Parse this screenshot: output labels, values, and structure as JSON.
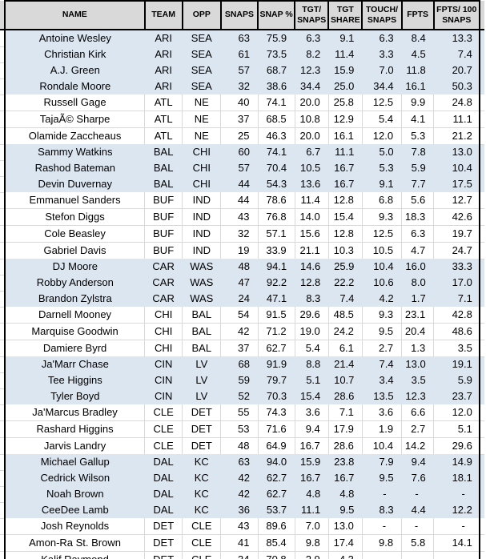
{
  "colors": {
    "header_bg": "#d9d9d9",
    "row_shaded": "#dce6f1",
    "row_plain": "#ffffff",
    "gridline": "#d9d9d9",
    "table_border": "#000000",
    "text": "#000000"
  },
  "table": {
    "columns": [
      {
        "id": "name",
        "label": "NAME"
      },
      {
        "id": "team",
        "label": "TEAM"
      },
      {
        "id": "opp",
        "label": "OPP"
      },
      {
        "id": "snaps",
        "label": "SNAPS"
      },
      {
        "id": "snap-pct",
        "label": "SNAP %"
      },
      {
        "id": "tgt-snaps",
        "label": "TGT/\nSNAPS"
      },
      {
        "id": "tgt-share",
        "label": "TGT\nSHARE"
      },
      {
        "id": "touch-snaps",
        "label": "TOUCH/\nSNAPS"
      },
      {
        "id": "fpts",
        "label": "FPTS"
      },
      {
        "id": "fpts-100",
        "label": "FPTS/ 100\nSNAPS"
      }
    ],
    "shaded_teams": [
      "ARI",
      "BAL",
      "CAR",
      "CIN",
      "DAL"
    ],
    "rows": [
      [
        "Antoine Wesley",
        "ARI",
        "SEA",
        "63",
        "75.9",
        "6.3",
        "9.1",
        "6.3",
        "8.4",
        "13.3"
      ],
      [
        "Christian Kirk",
        "ARI",
        "SEA",
        "61",
        "73.5",
        "8.2",
        "11.4",
        "3.3",
        "4.5",
        "7.4"
      ],
      [
        "A.J. Green",
        "ARI",
        "SEA",
        "57",
        "68.7",
        "12.3",
        "15.9",
        "7.0",
        "11.8",
        "20.7"
      ],
      [
        "Rondale Moore",
        "ARI",
        "SEA",
        "32",
        "38.6",
        "34.4",
        "25.0",
        "34.4",
        "16.1",
        "50.3"
      ],
      [
        "Russell Gage",
        "ATL",
        "NE",
        "40",
        "74.1",
        "20.0",
        "25.8",
        "12.5",
        "9.9",
        "24.8"
      ],
      [
        "TajaÃ© Sharpe",
        "ATL",
        "NE",
        "37",
        "68.5",
        "10.8",
        "12.9",
        "5.4",
        "4.1",
        "11.1"
      ],
      [
        "Olamide Zaccheaus",
        "ATL",
        "NE",
        "25",
        "46.3",
        "20.0",
        "16.1",
        "12.0",
        "5.3",
        "21.2"
      ],
      [
        "Sammy Watkins",
        "BAL",
        "CHI",
        "60",
        "74.1",
        "6.7",
        "11.1",
        "5.0",
        "7.8",
        "13.0"
      ],
      [
        "Rashod Bateman",
        "BAL",
        "CHI",
        "57",
        "70.4",
        "10.5",
        "16.7",
        "5.3",
        "5.9",
        "10.4"
      ],
      [
        "Devin Duvernay",
        "BAL",
        "CHI",
        "44",
        "54.3",
        "13.6",
        "16.7",
        "9.1",
        "7.7",
        "17.5"
      ],
      [
        "Emmanuel Sanders",
        "BUF",
        "IND",
        "44",
        "78.6",
        "11.4",
        "12.8",
        "6.8",
        "5.6",
        "12.7"
      ],
      [
        "Stefon Diggs",
        "BUF",
        "IND",
        "43",
        "76.8",
        "14.0",
        "15.4",
        "9.3",
        "18.3",
        "42.6"
      ],
      [
        "Cole Beasley",
        "BUF",
        "IND",
        "32",
        "57.1",
        "15.6",
        "12.8",
        "12.5",
        "6.3",
        "19.7"
      ],
      [
        "Gabriel Davis",
        "BUF",
        "IND",
        "19",
        "33.9",
        "21.1",
        "10.3",
        "10.5",
        "4.7",
        "24.7"
      ],
      [
        "DJ Moore",
        "CAR",
        "WAS",
        "48",
        "94.1",
        "14.6",
        "25.9",
        "10.4",
        "16.0",
        "33.3"
      ],
      [
        "Robby Anderson",
        "CAR",
        "WAS",
        "47",
        "92.2",
        "12.8",
        "22.2",
        "10.6",
        "8.0",
        "17.0"
      ],
      [
        "Brandon Zylstra",
        "CAR",
        "WAS",
        "24",
        "47.1",
        "8.3",
        "7.4",
        "4.2",
        "1.7",
        "7.1"
      ],
      [
        "Darnell Mooney",
        "CHI",
        "BAL",
        "54",
        "91.5",
        "29.6",
        "48.5",
        "9.3",
        "23.1",
        "42.8"
      ],
      [
        "Marquise Goodwin",
        "CHI",
        "BAL",
        "42",
        "71.2",
        "19.0",
        "24.2",
        "9.5",
        "20.4",
        "48.6"
      ],
      [
        "Damiere Byrd",
        "CHI",
        "BAL",
        "37",
        "62.7",
        "5.4",
        "6.1",
        "2.7",
        "1.3",
        "3.5"
      ],
      [
        "Ja'Marr Chase",
        "CIN",
        "LV",
        "68",
        "91.9",
        "8.8",
        "21.4",
        "7.4",
        "13.0",
        "19.1"
      ],
      [
        "Tee Higgins",
        "CIN",
        "LV",
        "59",
        "79.7",
        "5.1",
        "10.7",
        "3.4",
        "3.5",
        "5.9"
      ],
      [
        "Tyler Boyd",
        "CIN",
        "LV",
        "52",
        "70.3",
        "15.4",
        "28.6",
        "13.5",
        "12.3",
        "23.7"
      ],
      [
        "Ja'Marcus Bradley",
        "CLE",
        "DET",
        "55",
        "74.3",
        "3.6",
        "7.1",
        "3.6",
        "6.6",
        "12.0"
      ],
      [
        "Rashard Higgins",
        "CLE",
        "DET",
        "53",
        "71.6",
        "9.4",
        "17.9",
        "1.9",
        "2.7",
        "5.1"
      ],
      [
        "Jarvis Landry",
        "CLE",
        "DET",
        "48",
        "64.9",
        "16.7",
        "28.6",
        "10.4",
        "14.2",
        "29.6"
      ],
      [
        "Michael Gallup",
        "DAL",
        "KC",
        "63",
        "94.0",
        "15.9",
        "23.8",
        "7.9",
        "9.4",
        "14.9"
      ],
      [
        "Cedrick Wilson",
        "DAL",
        "KC",
        "42",
        "62.7",
        "16.7",
        "16.7",
        "9.5",
        "7.6",
        "18.1"
      ],
      [
        "Noah Brown",
        "DAL",
        "KC",
        "42",
        "62.7",
        "4.8",
        "4.8",
        "-",
        "-",
        "-"
      ],
      [
        "CeeDee Lamb",
        "DAL",
        "KC",
        "36",
        "53.7",
        "11.1",
        "9.5",
        "8.3",
        "4.4",
        "12.2"
      ],
      [
        "Josh Reynolds",
        "DET",
        "CLE",
        "43",
        "89.6",
        "7.0",
        "13.0",
        "-",
        "-",
        "-"
      ],
      [
        "Amon-Ra St. Brown",
        "DET",
        "CLE",
        "41",
        "85.4",
        "9.8",
        "17.4",
        "9.8",
        "5.8",
        "14.1"
      ],
      [
        "Kalif Raymond",
        "DET",
        "CLE",
        "34",
        "70.8",
        "2.9",
        "4.3",
        "-",
        "-",
        "-"
      ]
    ]
  }
}
